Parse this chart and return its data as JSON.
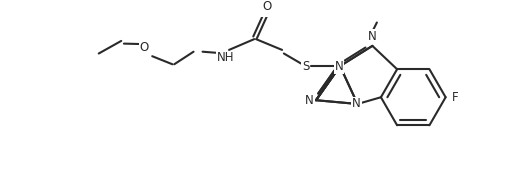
{
  "bg_color": "#ffffff",
  "line_color": "#2a2a2a",
  "line_width": 1.5,
  "font_size": 8.5,
  "fig_width": 5.3,
  "fig_height": 1.84,
  "dpi": 100,
  "xlim": [
    0,
    10.6
  ],
  "ylim": [
    0,
    3.68
  ]
}
